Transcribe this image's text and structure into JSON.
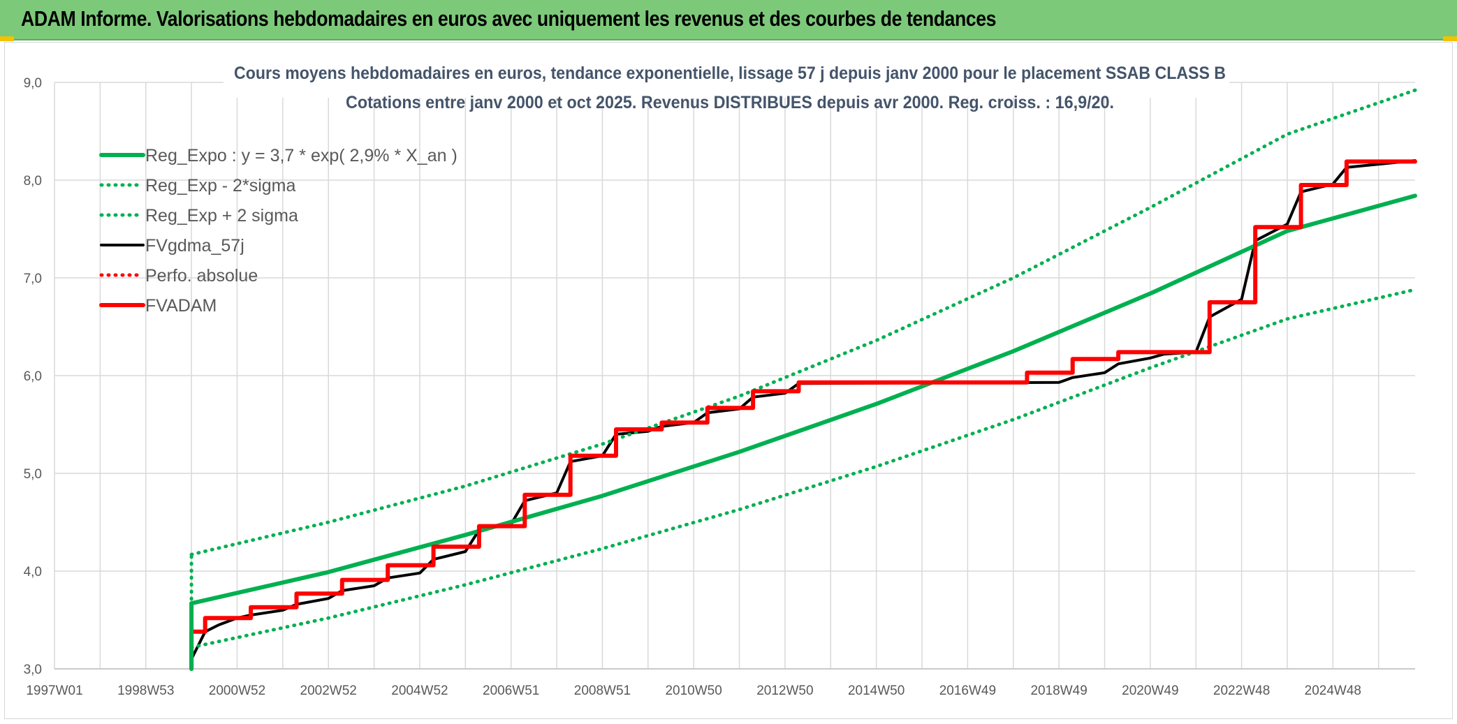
{
  "banner": {
    "title": "ADAM Informe. Valorisations hebdomadaires en euros avec uniquement les revenus et des courbes de tendances",
    "color": "#7dc97a"
  },
  "chart_data": {
    "type": "line",
    "title": "Cours moyens hebdomadaires en euros, tendance exponentielle, lissage 57 j depuis janv 2000 pour le placement SSAB CLASS B",
    "subtitle": "Cotations entre janv 2000 et oct 2025. Revenus DISTRIBUES depuis avr 2000. Reg. croiss. : 16,9/20.",
    "xlabel": "",
    "ylabel": "",
    "x_ticks": [
      "1997W01",
      "1998W53",
      "2000W52",
      "2002W52",
      "2004W52",
      "2006W51",
      "2008W51",
      "2010W50",
      "2012W50",
      "2014W50",
      "2016W49",
      "2018W49",
      "2020W49",
      "2022W48",
      "2024W48"
    ],
    "xlim": [
      1997.0,
      2026.8
    ],
    "ylim": [
      3.0,
      9.0
    ],
    "y_ticks": [
      "3,0",
      "4,0",
      "5,0",
      "6,0",
      "7,0",
      "8,0",
      "9,0"
    ],
    "grid": true,
    "legend_position": "top-left",
    "series": [
      {
        "name": "Reg_Expo : y = 3,7 * exp( 2,9% *  X_an )",
        "style": "solid",
        "color": "#00b050",
        "x": [
          2000.0,
          2003.0,
          2006.0,
          2009.0,
          2012.0,
          2015.0,
          2018.0,
          2021.0,
          2024.0,
          2026.8
        ],
        "y": [
          3.67,
          3.99,
          4.37,
          4.77,
          5.22,
          5.71,
          6.25,
          6.84,
          7.48,
          7.84
        ]
      },
      {
        "name": "Reg_Exp - 2*sigma",
        "style": "dotted",
        "color": "#00b050",
        "x": [
          2000.0,
          2003.0,
          2006.0,
          2009.0,
          2012.0,
          2015.0,
          2018.0,
          2021.0,
          2024.0,
          2026.8
        ],
        "y": [
          3.22,
          3.52,
          3.86,
          4.23,
          4.63,
          5.07,
          5.55,
          6.08,
          6.58,
          6.88
        ]
      },
      {
        "name": "Reg_Exp + 2 sigma",
        "style": "dotted",
        "color": "#00b050",
        "x": [
          2000.0,
          2003.0,
          2006.0,
          2009.0,
          2012.0,
          2015.0,
          2018.0,
          2021.0,
          2024.0,
          2026.8
        ],
        "y": [
          4.17,
          4.5,
          4.87,
          5.3,
          5.79,
          6.36,
          7.0,
          7.72,
          8.47,
          8.92
        ]
      },
      {
        "name": "FVgdma_57j",
        "style": "solid",
        "color": "#000000",
        "x": [
          2000.0,
          2000.3,
          2000.6,
          2001.0,
          2001.3,
          2002.0,
          2002.3,
          2003.0,
          2003.3,
          2004.0,
          2004.3,
          2005.0,
          2005.3,
          2006.0,
          2006.3,
          2007.0,
          2007.3,
          2008.0,
          2008.3,
          2009.0,
          2009.3,
          2010.0,
          2010.3,
          2011.0,
          2011.3,
          2012.0,
          2012.3,
          2013.0,
          2013.3,
          2019.0,
          2019.3,
          2020.0,
          2020.3,
          2021.0,
          2021.3,
          2022.0,
          2022.3,
          2023.0,
          2023.3,
          2024.0,
          2024.3,
          2025.0,
          2025.3,
          2026.8
        ],
        "y": [
          3.1,
          3.38,
          3.45,
          3.52,
          3.55,
          3.6,
          3.66,
          3.72,
          3.8,
          3.85,
          3.93,
          3.98,
          4.12,
          4.2,
          4.42,
          4.48,
          4.72,
          4.8,
          5.12,
          5.18,
          5.4,
          5.43,
          5.48,
          5.52,
          5.62,
          5.66,
          5.78,
          5.82,
          5.92,
          5.93,
          5.98,
          6.03,
          6.12,
          6.18,
          6.22,
          6.24,
          6.6,
          6.78,
          7.38,
          7.55,
          7.88,
          7.96,
          8.13,
          8.2
        ]
      },
      {
        "name": "Perfo. absolue",
        "style": "dotted",
        "color": "#ff0000",
        "x": [],
        "y": []
      },
      {
        "name": "FVADAM",
        "style": "solid",
        "color": "#ff0000",
        "x": [
          2000.0,
          2000.0,
          2000.3,
          2000.3,
          2001.3,
          2001.3,
          2002.3,
          2002.3,
          2003.3,
          2003.3,
          2004.3,
          2004.3,
          2005.3,
          2005.3,
          2006.3,
          2006.3,
          2007.3,
          2007.3,
          2008.3,
          2008.3,
          2009.3,
          2009.3,
          2010.3,
          2010.3,
          2011.3,
          2011.3,
          2012.3,
          2012.3,
          2013.3,
          2013.3,
          2018.3,
          2018.3,
          2019.3,
          2019.3,
          2020.3,
          2020.3,
          2022.3,
          2022.3,
          2023.3,
          2023.3,
          2024.3,
          2024.3,
          2025.3,
          2025.3,
          2026.8
        ],
        "y": [
          3.0,
          3.38,
          3.38,
          3.52,
          3.52,
          3.63,
          3.63,
          3.77,
          3.77,
          3.91,
          3.91,
          4.06,
          4.06,
          4.25,
          4.25,
          4.46,
          4.46,
          4.78,
          4.78,
          5.18,
          5.18,
          5.45,
          5.45,
          5.52,
          5.52,
          5.67,
          5.67,
          5.84,
          5.84,
          5.93,
          5.93,
          6.03,
          6.03,
          6.17,
          6.17,
          6.24,
          6.24,
          6.75,
          6.75,
          7.52,
          7.52,
          7.95,
          7.95,
          8.19,
          8.19
        ]
      }
    ]
  }
}
